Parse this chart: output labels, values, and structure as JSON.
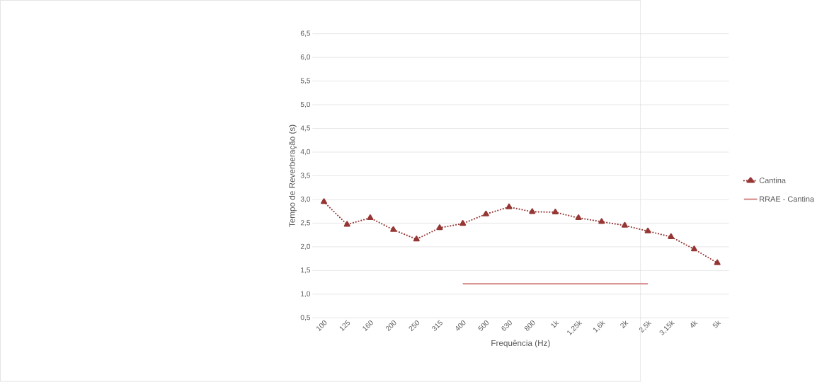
{
  "chart_data": {
    "type": "line",
    "xlabel": "Frequência (Hz)",
    "ylabel": "Tempo de Reverberação (s)",
    "categories": [
      "100",
      "125",
      "160",
      "200",
      "250",
      "315",
      "400",
      "500",
      "630",
      "800",
      "1k",
      "1,25k",
      "1,6k",
      "2k",
      "2,5k",
      "3,15k",
      "4k",
      "5k"
    ],
    "series": [
      {
        "name": "Cantina",
        "color": "#953735",
        "marker": "triangle",
        "line_style": "dotted",
        "values": [
          2.95,
          2.47,
          2.61,
          2.36,
          2.16,
          2.4,
          2.49,
          2.69,
          2.84,
          2.74,
          2.73,
          2.61,
          2.53,
          2.45,
          2.33,
          2.21,
          1.95,
          1.66
        ]
      },
      {
        "name": "RRAE - Cantina",
        "color": "#d99694",
        "marker": "none",
        "line_style": "solid",
        "values": [
          null,
          null,
          null,
          null,
          null,
          null,
          1.22,
          1.22,
          1.22,
          1.22,
          1.22,
          1.22,
          1.22,
          1.22,
          1.22,
          null,
          null,
          null
        ]
      }
    ],
    "ylim": [
      0.5,
      6.5
    ],
    "yticks": [
      {
        "value": 0.5,
        "label": "0,5"
      },
      {
        "value": 1,
        "label": "1,0"
      },
      {
        "value": 1.5,
        "label": "1,5"
      },
      {
        "value": 2,
        "label": "2,0"
      },
      {
        "value": 2.5,
        "label": "2,5"
      },
      {
        "value": 3,
        "label": "3,0"
      },
      {
        "value": 3.5,
        "label": "3,5"
      },
      {
        "value": 4,
        "label": "4,0"
      },
      {
        "value": 4.5,
        "label": "4,5"
      },
      {
        "value": 5,
        "label": "5,0"
      },
      {
        "value": 5.5,
        "label": "5,5"
      },
      {
        "value": 6,
        "label": "6,0"
      },
      {
        "value": 6.5,
        "label": "6,5"
      }
    ],
    "grid": "y",
    "legend": "right"
  }
}
